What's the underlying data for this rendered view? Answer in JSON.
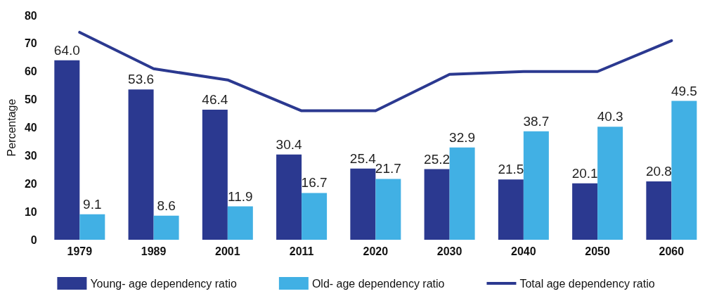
{
  "chart_data": {
    "type": "bar",
    "ylabel": "Percentage",
    "categories": [
      "1979",
      "1989",
      "2001",
      "2011",
      "2020",
      "2030",
      "2040",
      "2050",
      "2060"
    ],
    "series": [
      {
        "name": "Young- age dependency ratio",
        "color": "#2b3990",
        "values": [
          64.0,
          53.6,
          46.4,
          30.4,
          25.4,
          25.2,
          21.5,
          20.1,
          20.8
        ],
        "value_labels": [
          "64.0",
          "53.6",
          "46.4",
          "30.4",
          "25.4",
          "25.2",
          "21.5",
          "20.1",
          "20.8"
        ]
      },
      {
        "name": "Old- age dependency ratio",
        "color": "#41b0e4",
        "values": [
          9.1,
          8.6,
          11.9,
          16.7,
          21.7,
          32.9,
          38.7,
          40.3,
          49.5
        ],
        "value_labels": [
          "9.1",
          "8.6",
          "11.9",
          "16.7",
          "21.7",
          "32.9",
          "38.7",
          "40.3",
          "49.5"
        ]
      },
      {
        "name": "Total age dependency ratio",
        "type": "line",
        "color": "#2b3990",
        "marker": "none",
        "values": [
          74,
          61,
          57,
          46,
          46,
          59,
          60,
          60,
          71
        ]
      }
    ],
    "ylim": [
      0,
      80
    ],
    "yticks": [
      0,
      10,
      20,
      30,
      40,
      50,
      60,
      70,
      80
    ],
    "grid": false,
    "legend": "bottom"
  }
}
